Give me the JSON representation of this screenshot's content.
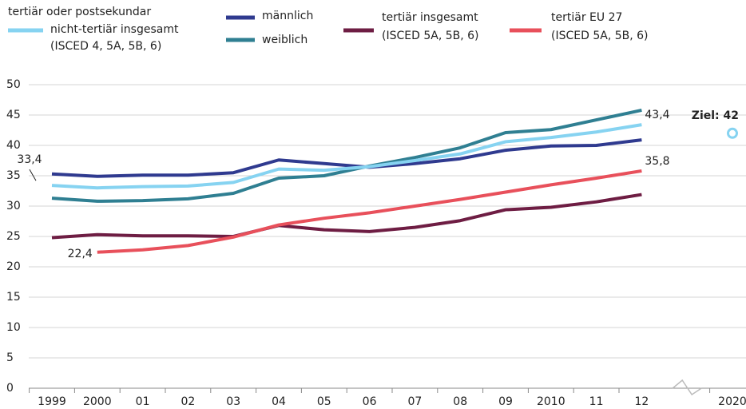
{
  "chart_data": {
    "type": "line",
    "categories": [
      "1999",
      "2000",
      "01",
      "02",
      "03",
      "04",
      "05",
      "06",
      "07",
      "08",
      "09",
      "2010",
      "11",
      "12",
      null,
      "2020"
    ],
    "ylim": [
      0,
      50
    ],
    "yticks": [
      0,
      5,
      10,
      15,
      20,
      25,
      30,
      35,
      40,
      45,
      50
    ],
    "grid": true,
    "series": [
      {
        "name": "tertiär oder postsekundar\nnicht-tertiär insgesamt\n(ISCED 4, 5A, 5B, 6)",
        "color": "#86d3f1",
        "values": [
          33.4,
          33.0,
          33.2,
          33.3,
          33.9,
          36.1,
          35.9,
          36.5,
          37.5,
          38.6,
          40.6,
          41.3,
          42.2,
          43.4,
          null,
          null
        ],
        "value_labels": [
          "33,4",
          null,
          null,
          null,
          null,
          null,
          null,
          null,
          null,
          null,
          null,
          null,
          null,
          "43,4",
          null,
          null
        ]
      },
      {
        "name": "männlich",
        "color": "#2f3a8f",
        "values": [
          35.3,
          34.9,
          35.1,
          35.1,
          35.5,
          37.6,
          37.0,
          36.4,
          37.0,
          37.8,
          39.2,
          39.9,
          40.0,
          40.9,
          null,
          null
        ]
      },
      {
        "name": "weiblich",
        "color": "#2f7f92",
        "values": [
          31.3,
          30.8,
          30.9,
          31.2,
          32.1,
          34.6,
          35.0,
          36.6,
          38.0,
          39.6,
          42.1,
          42.6,
          44.2,
          45.8,
          null,
          null
        ]
      },
      {
        "name": "tertiär insgesamt\n(ISCED 5A, 5B, 6)",
        "color": "#6e1d43",
        "values": [
          24.8,
          25.3,
          25.1,
          25.1,
          25.0,
          26.8,
          26.1,
          25.8,
          26.5,
          27.6,
          29.4,
          29.8,
          30.7,
          31.9,
          null,
          null
        ]
      },
      {
        "name": "tertiär EU 27\n(ISCED 5A, 5B, 6)",
        "color": "#e8505b",
        "values": [
          null,
          22.4,
          22.8,
          23.5,
          24.9,
          26.9,
          28.0,
          28.9,
          30.0,
          31.1,
          32.3,
          33.5,
          34.6,
          35.8,
          null,
          null
        ],
        "value_labels": [
          null,
          "22,4",
          null,
          null,
          null,
          null,
          null,
          null,
          null,
          null,
          null,
          null,
          null,
          "35,8",
          null,
          null
        ]
      }
    ],
    "target": {
      "value": 42,
      "label": "Ziel: 42"
    }
  }
}
